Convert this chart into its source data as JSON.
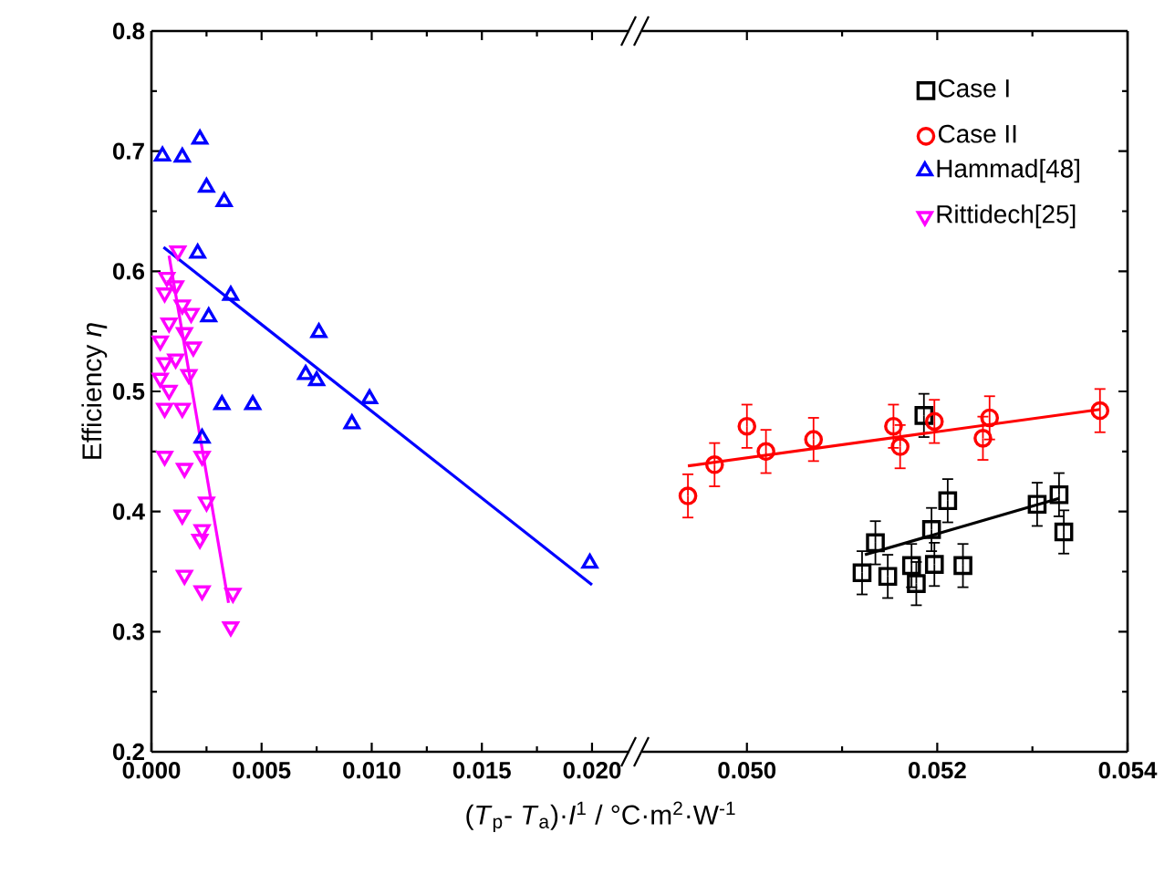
{
  "chart_data": [
    {
      "type": "scatter",
      "ylabel": "Efficiency *η*",
      "xlabel": "(*T*$_{p}$- *T*$_{a}$)·*I*$^{1}$ / °C·m$^{2}$·W$^{-1}$",
      "xlim": [
        0,
        0.0217
      ],
      "ylim": [
        0.2,
        0.8
      ],
      "legend": "top right",
      "xticks": [
        {
          "value": 0,
          "label": "0.000"
        },
        {
          "value": 0.005,
          "label": "0.005"
        },
        {
          "value": 0.01,
          "label": "0.010"
        },
        {
          "value": 0.015,
          "label": "0.015"
        },
        {
          "value": 0.02,
          "label": "0.020"
        }
      ],
      "yticks": [
        0.2,
        0.3,
        0.4,
        0.5,
        0.6,
        0.7,
        0.8
      ],
      "series": [
        {
          "name": "Hammad[48]",
          "color": "#0000ff",
          "marker": "triangle",
          "x": [
            0.0005,
            0.0014,
            0.0022,
            0.0025,
            0.0033,
            0.0021,
            0.0036,
            0.0026,
            0.0032,
            0.0046,
            0.0076,
            0.007,
            0.0075,
            0.0099,
            0.0091,
            0.0023,
            0.0199
          ],
          "values": [
            0.696,
            0.695,
            0.71,
            0.67,
            0.658,
            0.615,
            0.58,
            0.562,
            0.489,
            0.489,
            0.549,
            0.514,
            0.509,
            0.494,
            0.473,
            0.461,
            0.357
          ]
        },
        {
          "name": "Rittidech[25]",
          "color": "#ff00ff",
          "marker": "triangle down",
          "x": [
            0.0012,
            0.0007,
            0.0006,
            0.0011,
            0.0014,
            0.0018,
            0.0008,
            0.0004,
            0.0015,
            0.0019,
            0.0006,
            0.0011,
            0.0017,
            0.0004,
            0.0008,
            0.0006,
            0.0014,
            0.0006,
            0.0015,
            0.0023,
            0.0025,
            0.0014,
            0.0023,
            0.0022,
            0.0015,
            0.0023,
            0.0037,
            0.0036
          ],
          "values": [
            0.617,
            0.595,
            0.582,
            0.588,
            0.572,
            0.565,
            0.557,
            0.542,
            0.549,
            0.537,
            0.524,
            0.527,
            0.514,
            0.511,
            0.501,
            0.486,
            0.486,
            0.446,
            0.436,
            0.446,
            0.408,
            0.397,
            0.385,
            0.377,
            0.347,
            0.334,
            0.332,
            0.304
          ]
        },
        {
          "type": "line",
          "color": "#0000ff",
          "x": [
            0.00055,
            0.02
          ],
          "values": [
            0.62,
            0.339
          ]
        },
        {
          "type": "line",
          "color": "#ff00ff",
          "x": [
            0.0008,
            0.0035
          ],
          "values": [
            0.613,
            0.324
          ]
        }
      ]
    },
    {
      "type": "scatter",
      "xlim": [
        0.0489,
        0.054
      ],
      "ylim": [
        0.2,
        0.8
      ],
      "tick_labels": "x",
      "legend": "top right",
      "xticks": [
        {
          "value": 0.05,
          "label": "0.050"
        },
        0.052,
        0.054
      ],
      "yticks": [
        0.2,
        0.3,
        0.4,
        0.5,
        0.6,
        0.7,
        0.8
      ],
      "series": [
        {
          "name": "Case I",
          "color": "#000000",
          "marker": "square",
          "x": [
            0.05121,
            0.05135,
            0.05148,
            0.05173,
            0.05178,
            0.05197,
            0.05194,
            0.05211,
            0.05227,
            0.05186,
            0.05305,
            0.05328,
            0.05333
          ],
          "values": [
            0.349,
            0.374,
            0.346,
            0.355,
            0.34,
            0.356,
            0.385,
            0.409,
            0.355,
            0.48,
            0.406,
            0.414,
            0.383
          ],
          "errors": [
            0.018,
            0.018,
            0.018,
            0.018,
            0.018,
            0.018,
            0.018,
            0.018,
            0.018,
            0.018,
            0.018,
            0.018,
            0.018
          ]
        },
        {
          "name": "Case II",
          "color": "#ff0000",
          "marker": "circle",
          "x": [
            0.04938,
            0.04966,
            0.05,
            0.0502,
            0.0507,
            0.05154,
            0.05161,
            0.05197,
            0.05248,
            0.05255,
            0.05371
          ],
          "values": [
            0.413,
            0.439,
            0.471,
            0.45,
            0.46,
            0.471,
            0.454,
            0.475,
            0.461,
            0.478,
            0.484
          ],
          "errors": [
            0.018,
            0.018,
            0.018,
            0.018,
            0.018,
            0.018,
            0.018,
            0.018,
            0.018,
            0.018,
            0.018
          ]
        },
        {
          "type": "line",
          "color": "#000000",
          "x": [
            0.05124,
            0.05328
          ],
          "values": [
            0.364,
            0.411
          ]
        },
        {
          "type": "line",
          "color": "#ff0000",
          "x": [
            0.04938,
            0.05371
          ],
          "values": [
            0.438,
            0.485
          ]
        }
      ]
    }
  ]
}
